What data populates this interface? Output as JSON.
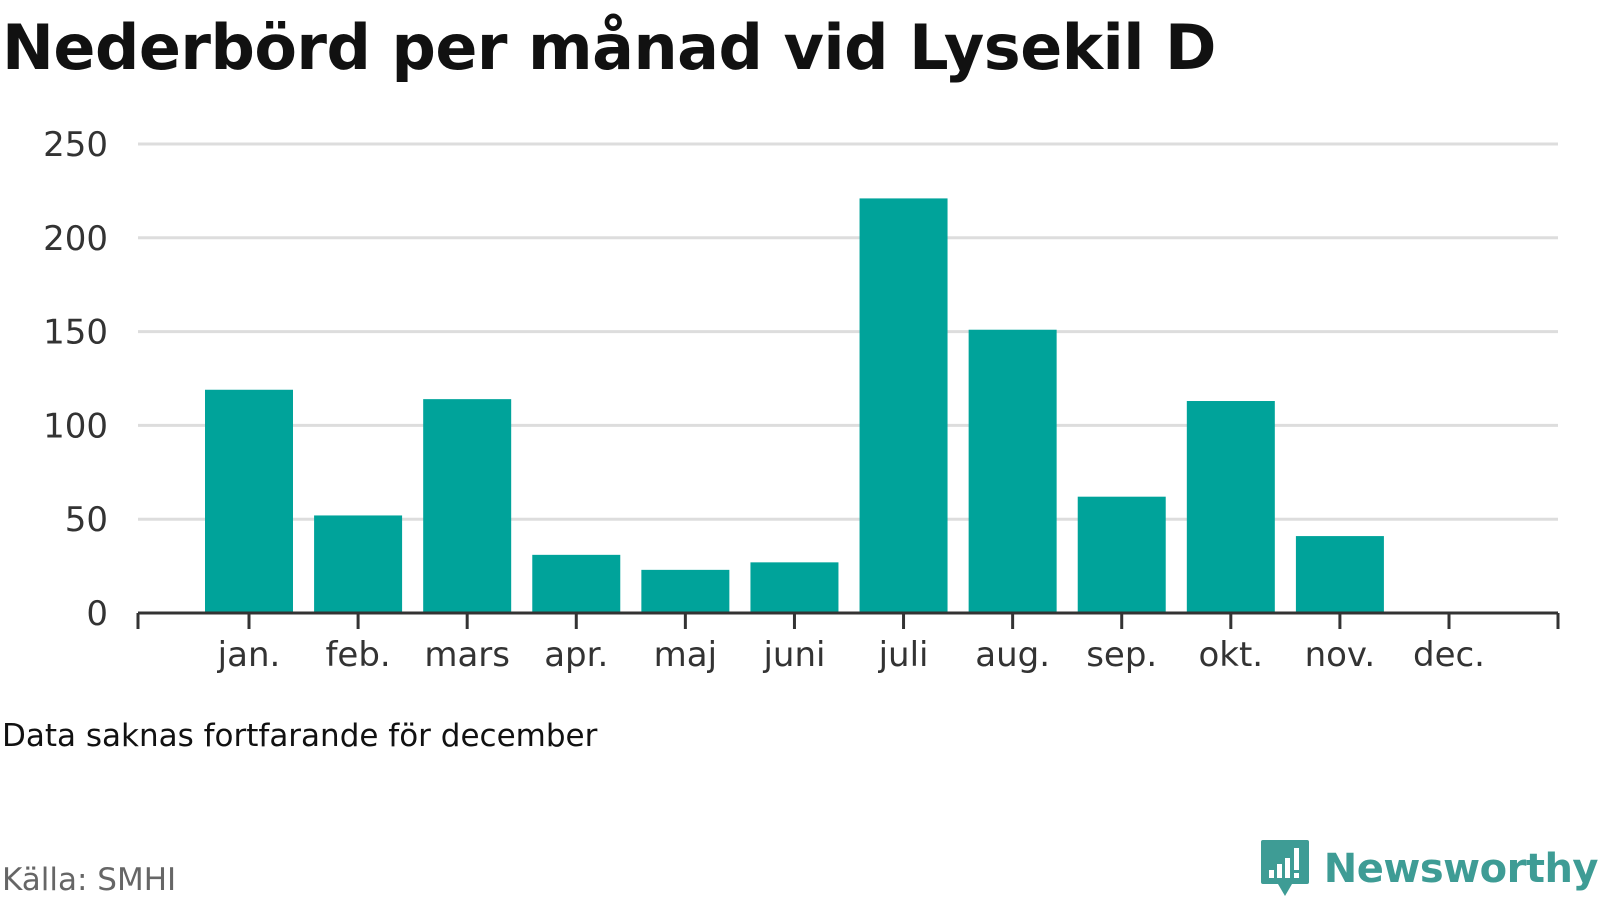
{
  "title": "Nederbörd per månad vid Lysekil D",
  "note": "Data saknas fortfarande för december",
  "source": "Källa: SMHI",
  "brand": {
    "name": "Newsworthy",
    "icon": "bar-chart-speech-bubble-icon",
    "color": "#3e9c95"
  },
  "colors": {
    "bar": "#00a39a",
    "grid": "#dddddd",
    "axis": "#333333"
  },
  "chart_data": {
    "type": "bar",
    "title": "Nederbörd per månad vid Lysekil D",
    "xlabel": "",
    "ylabel": "",
    "categories": [
      "jan.",
      "feb.",
      "mars",
      "apr.",
      "maj",
      "juni",
      "juli",
      "aug.",
      "sep.",
      "okt.",
      "nov.",
      "dec."
    ],
    "values": [
      119,
      52,
      114,
      31,
      23,
      27,
      221,
      151,
      62,
      113,
      41,
      null
    ],
    "ylim": [
      0,
      250
    ],
    "yticks": [
      0,
      50,
      100,
      150,
      200,
      250
    ],
    "grid": true,
    "legend": "none"
  }
}
